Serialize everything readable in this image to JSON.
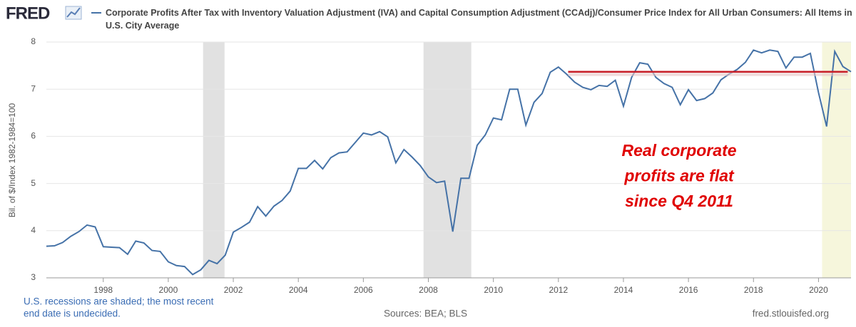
{
  "chart_data": {
    "type": "line",
    "logo": "FRED",
    "y_axis_label": "Bil. of $/Index 1982-1984=100",
    "xlim": [
      1996.25,
      2021.0
    ],
    "xticks": [
      1998,
      2000,
      2002,
      2004,
      2006,
      2008,
      2010,
      2012,
      2014,
      2016,
      2018,
      2020
    ],
    "ylim": [
      3,
      8
    ],
    "yticks": [
      3,
      4,
      5,
      6,
      7,
      8
    ],
    "grid": true,
    "recessions": [
      [
        2001.07,
        2001.73
      ],
      [
        2007.85,
        2009.32
      ],
      [
        2020.11,
        2021.0
      ]
    ],
    "recession_colors": [
      "#e1e1e1",
      "#e1e1e1",
      "#f6f6dc"
    ],
    "reference_line": {
      "value": 7.37,
      "start": 2012.3,
      "end": 2020.9,
      "color": "#c8202a"
    },
    "annotation": [
      "Real corporate",
      "profits are flat",
      "since Q4 2011"
    ],
    "notes": [
      "U.S. recessions are shaded; the most recent",
      "end date is undecided."
    ],
    "sources": "Sources: BEA; BLS",
    "site": "fred.stlouisfed.org",
    "x": [
      1996.25,
      1996.5,
      1996.75,
      1997.0,
      1997.25,
      1997.5,
      1997.75,
      1998.0,
      1998.25,
      1998.5,
      1998.75,
      1999.0,
      1999.25,
      1999.5,
      1999.75,
      2000.0,
      2000.25,
      2000.5,
      2000.75,
      2001.0,
      2001.25,
      2001.5,
      2001.75,
      2002.0,
      2002.25,
      2002.5,
      2002.75,
      2003.0,
      2003.25,
      2003.5,
      2003.75,
      2004.0,
      2004.25,
      2004.5,
      2004.75,
      2005.0,
      2005.25,
      2005.5,
      2005.75,
      2006.0,
      2006.25,
      2006.5,
      2006.75,
      2007.0,
      2007.25,
      2007.5,
      2007.75,
      2008.0,
      2008.25,
      2008.5,
      2008.75,
      2009.0,
      2009.25,
      2009.5,
      2009.75,
      2010.0,
      2010.25,
      2010.5,
      2010.75,
      2011.0,
      2011.25,
      2011.5,
      2011.75,
      2012.0,
      2012.25,
      2012.5,
      2012.75,
      2013.0,
      2013.25,
      2013.5,
      2013.75,
      2014.0,
      2014.25,
      2014.5,
      2014.75,
      2015.0,
      2015.25,
      2015.5,
      2015.75,
      2016.0,
      2016.25,
      2016.5,
      2016.75,
      2017.0,
      2017.25,
      2017.5,
      2017.75,
      2018.0,
      2018.25,
      2018.5,
      2018.75,
      2019.0,
      2019.25,
      2019.5,
      2019.75,
      2020.0,
      2020.25,
      2020.5,
      2020.75,
      2021.0
    ],
    "series": [
      {
        "name": "Corporate Profits After Tax with Inventory Valuation Adjustment (IVA) and Capital Consumption Adjustment (CCAdj)/Consumer Price Index for All Urban Consumers: All Items in U.S. City Average",
        "color": "#4572a7",
        "values": [
          3.67,
          3.68,
          3.75,
          3.88,
          3.98,
          4.12,
          4.08,
          3.66,
          3.65,
          3.64,
          3.5,
          3.78,
          3.74,
          3.58,
          3.56,
          3.34,
          3.26,
          3.24,
          3.07,
          3.17,
          3.37,
          3.3,
          3.48,
          3.97,
          4.07,
          4.18,
          4.51,
          4.31,
          4.52,
          4.64,
          4.84,
          5.32,
          5.32,
          5.49,
          5.31,
          5.55,
          5.65,
          5.67,
          5.87,
          6.07,
          6.03,
          6.1,
          5.99,
          5.44,
          5.72,
          5.56,
          5.38,
          5.14,
          5.02,
          5.05,
          3.98,
          5.11,
          5.11,
          5.81,
          6.03,
          6.39,
          6.35,
          7.0,
          7.0,
          6.24,
          6.72,
          6.91,
          7.36,
          7.47,
          7.32,
          7.15,
          7.04,
          6.99,
          7.08,
          7.06,
          7.19,
          6.64,
          7.25,
          7.56,
          7.53,
          7.25,
          7.12,
          7.04,
          6.67,
          6.99,
          6.76,
          6.8,
          6.92,
          7.2,
          7.32,
          7.42,
          7.57,
          7.83,
          7.77,
          7.83,
          7.8,
          7.45,
          7.68,
          7.68,
          7.76,
          6.93,
          6.21,
          7.8,
          7.48,
          7.37
        ]
      }
    ]
  }
}
